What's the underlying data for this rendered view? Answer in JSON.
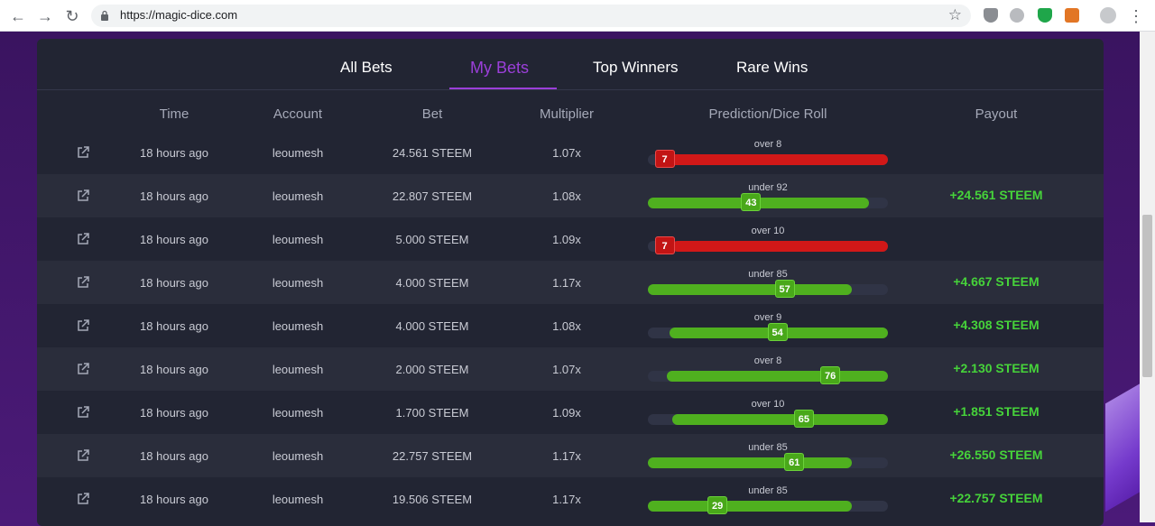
{
  "browser": {
    "url": "https://magic-dice.com",
    "colors": {
      "accent": "#9b3fd9",
      "win": "#46d33a",
      "lose": "#d11818"
    }
  },
  "tabs": [
    {
      "label": "All Bets",
      "active": false
    },
    {
      "label": "My Bets",
      "active": true
    },
    {
      "label": "Top Winners",
      "active": false
    },
    {
      "label": "Rare Wins",
      "active": false
    }
  ],
  "columns": [
    "Time",
    "Account",
    "Bet",
    "Multiplier",
    "Prediction/Dice Roll",
    "Payout"
  ],
  "bets": [
    {
      "time": "18 hours ago",
      "account": "leoumesh",
      "bet": "24.561 STEEM",
      "multiplier": "1.07x",
      "prediction": "over 8",
      "dir": "over",
      "target": 8,
      "roll": "7",
      "win": false,
      "payout": ""
    },
    {
      "time": "18 hours ago",
      "account": "leoumesh",
      "bet": "22.807 STEEM",
      "multiplier": "1.08x",
      "prediction": "under 92",
      "dir": "under",
      "target": 92,
      "roll": "43",
      "win": true,
      "payout": "+24.561 STEEM"
    },
    {
      "time": "18 hours ago",
      "account": "leoumesh",
      "bet": "5.000 STEEM",
      "multiplier": "1.09x",
      "prediction": "over 10",
      "dir": "over",
      "target": 10,
      "roll": "7",
      "win": false,
      "payout": ""
    },
    {
      "time": "18 hours ago",
      "account": "leoumesh",
      "bet": "4.000 STEEM",
      "multiplier": "1.17x",
      "prediction": "under 85",
      "dir": "under",
      "target": 85,
      "roll": "57",
      "win": true,
      "payout": "+4.667 STEEM"
    },
    {
      "time": "18 hours ago",
      "account": "leoumesh",
      "bet": "4.000 STEEM",
      "multiplier": "1.08x",
      "prediction": "over 9",
      "dir": "over",
      "target": 9,
      "roll": "54",
      "win": true,
      "payout": "+4.308 STEEM"
    },
    {
      "time": "18 hours ago",
      "account": "leoumesh",
      "bet": "2.000 STEEM",
      "multiplier": "1.07x",
      "prediction": "over 8",
      "dir": "over",
      "target": 8,
      "roll": "76",
      "win": true,
      "payout": "+2.130 STEEM"
    },
    {
      "time": "18 hours ago",
      "account": "leoumesh",
      "bet": "1.700 STEEM",
      "multiplier": "1.09x",
      "prediction": "over 10",
      "dir": "over",
      "target": 10,
      "roll": "65",
      "win": true,
      "payout": "+1.851 STEEM"
    },
    {
      "time": "18 hours ago",
      "account": "leoumesh",
      "bet": "22.757 STEEM",
      "multiplier": "1.17x",
      "prediction": "under 85",
      "dir": "under",
      "target": 85,
      "roll": "61",
      "win": true,
      "payout": "+26.550 STEEM"
    },
    {
      "time": "18 hours ago",
      "account": "leoumesh",
      "bet": "19.506 STEEM",
      "multiplier": "1.17x",
      "prediction": "under 85",
      "dir": "under",
      "target": 85,
      "roll": "29",
      "win": true,
      "payout": "+22.757 STEEM"
    }
  ]
}
